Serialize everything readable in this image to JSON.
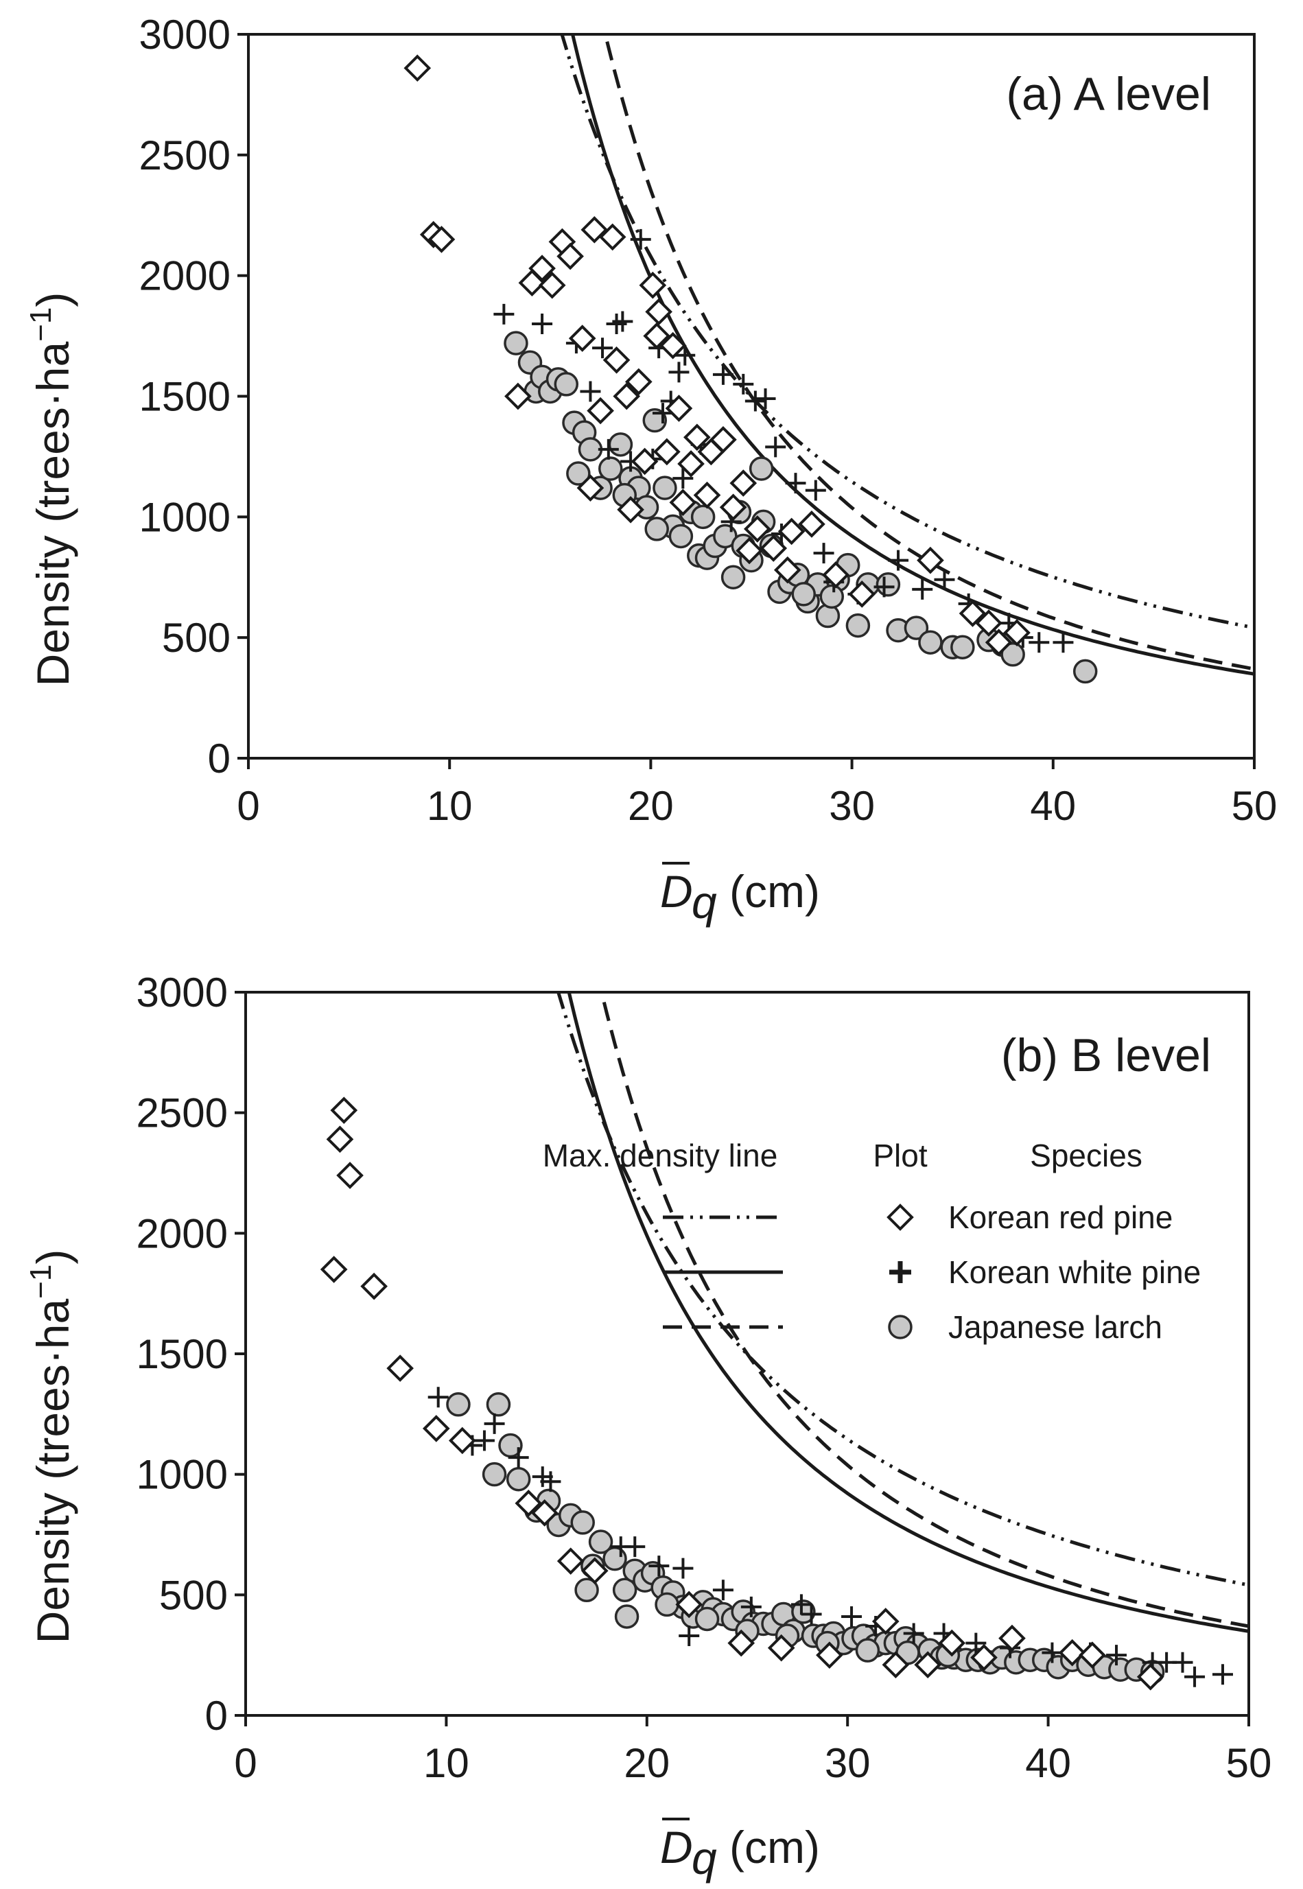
{
  "chart_data": [
    {
      "type": "scatter",
      "panel_label": "(a) A level",
      "xlabel": "(cm)",
      "xlabel_symbol": "D",
      "xlabel_subscript": "q",
      "ylabel": "Density (trees·ha",
      "ylabel_sup": "−1",
      "ylabel_close": ")",
      "xlim": [
        0,
        50
      ],
      "ylim": [
        0,
        3000
      ],
      "xticks": [
        "0",
        "10",
        "20",
        "30",
        "40",
        "50"
      ],
      "yticks": [
        "0",
        "500",
        "1000",
        "1500",
        "2000",
        "2500",
        "3000"
      ],
      "max_density_lines": [
        {
          "species": "Korean red pine",
          "style": "dash-dot-dot",
          "a": 170000,
          "b": -1.47
        },
        {
          "species": "Korean white pine",
          "style": "solid",
          "a": 590000,
          "b": -1.9
        },
        {
          "species": "Japanese larch",
          "style": "dashed",
          "a": 1000000,
          "b": -2.02
        }
      ],
      "series": [
        {
          "name": "Korean red pine",
          "marker": "diamond",
          "x": [
            8.4,
            9.2,
            9.6,
            13.4,
            14.1,
            14.6,
            15.1,
            15.6,
            16.0,
            16.6,
            17.2,
            17.0,
            18.1,
            18.3,
            18.8,
            19.4,
            19.7,
            20.1,
            20.3,
            20.4,
            20.8,
            21.1,
            21.4,
            22.0,
            22.3,
            23.0,
            23.6,
            24.1,
            24.6,
            25.3,
            26.1,
            27.0,
            28.0,
            29.2,
            30.5,
            33.9,
            36.0,
            36.8,
            37.3,
            38.2,
            17.5,
            19.0,
            21.6,
            22.8,
            24.9,
            26.8
          ],
          "y": [
            2860,
            2170,
            2150,
            1500,
            1970,
            2030,
            1960,
            2140,
            2080,
            1740,
            2190,
            1120,
            2160,
            1650,
            1500,
            1560,
            1230,
            1960,
            1750,
            1850,
            1270,
            1710,
            1450,
            1220,
            1330,
            1270,
            1320,
            1040,
            1140,
            950,
            870,
            940,
            970,
            760,
            680,
            820,
            600,
            560,
            480,
            520,
            1440,
            1030,
            1060,
            1090,
            860,
            780
          ]
        },
        {
          "name": "Korean white pine",
          "marker": "plus",
          "x": [
            12.7,
            14.6,
            16.3,
            17.0,
            17.6,
            18.3,
            18.6,
            19.5,
            20.1,
            20.4,
            20.6,
            21.0,
            21.4,
            21.7,
            22.5,
            23.6,
            24.6,
            25.2,
            25.7,
            26.2,
            27.2,
            28.2,
            29.1,
            30.3,
            31.6,
            33.5,
            34.6,
            37.8,
            38.5,
            39.3,
            40.5,
            17.9,
            19.0,
            21.6,
            24.0,
            26.5,
            28.6,
            32.3,
            35.8
          ],
          "y": [
            1840,
            1800,
            1720,
            1520,
            1700,
            1800,
            1810,
            2150,
            1240,
            1700,
            1430,
            1480,
            1600,
            1670,
            1300,
            1590,
            1550,
            1480,
            1490,
            1290,
            1140,
            1110,
            730,
            680,
            710,
            700,
            740,
            560,
            500,
            480,
            480,
            1280,
            1230,
            1160,
            980,
            930,
            850,
            820,
            640
          ]
        },
        {
          "name": "Japanese larch",
          "marker": "circle",
          "x": [
            13.3,
            14.0,
            14.3,
            14.6,
            15.0,
            15.4,
            15.8,
            16.2,
            16.7,
            17.0,
            17.5,
            18.0,
            18.5,
            19.0,
            19.4,
            19.8,
            20.2,
            20.7,
            21.1,
            21.5,
            22.0,
            22.4,
            22.8,
            23.2,
            23.7,
            24.1,
            24.6,
            25.0,
            25.5,
            26.0,
            26.4,
            26.9,
            27.3,
            27.8,
            28.3,
            28.8,
            29.3,
            29.8,
            30.3,
            30.8,
            31.8,
            32.3,
            33.2,
            33.9,
            35.0,
            35.5,
            36.8,
            37.5,
            38.0,
            41.6,
            20.3,
            22.6,
            24.4,
            25.6,
            27.6,
            29.0,
            16.4,
            18.7
          ],
          "y": [
            1720,
            1640,
            1520,
            1580,
            1520,
            1570,
            1550,
            1390,
            1350,
            1280,
            1120,
            1200,
            1300,
            1160,
            1120,
            1040,
            1400,
            1120,
            960,
            920,
            1020,
            840,
            830,
            880,
            920,
            750,
            880,
            820,
            1200,
            880,
            690,
            730,
            760,
            650,
            720,
            590,
            740,
            800,
            550,
            720,
            720,
            530,
            540,
            480,
            460,
            460,
            490,
            470,
            430,
            360,
            950,
            1000,
            1020,
            980,
            680,
            670,
            1180,
            1090
          ]
        }
      ]
    },
    {
      "type": "scatter",
      "panel_label": "(b) B level",
      "xlabel": "(cm)",
      "xlabel_symbol": "D",
      "xlabel_subscript": "q",
      "ylabel": "Density (trees·ha",
      "ylabel_sup": "−1",
      "ylabel_close": ")",
      "xlim": [
        0,
        50
      ],
      "ylim": [
        0,
        3000
      ],
      "xticks": [
        "0",
        "10",
        "20",
        "30",
        "40",
        "50"
      ],
      "yticks": [
        "0",
        "500",
        "1000",
        "1500",
        "2000",
        "2500",
        "3000"
      ],
      "max_density_lines": [
        {
          "species": "Korean red pine",
          "style": "dash-dot-dot",
          "a": 170000,
          "b": -1.47
        },
        {
          "species": "Korean white pine",
          "style": "solid",
          "a": 590000,
          "b": -1.9
        },
        {
          "species": "Japanese larch",
          "style": "dashed",
          "a": 1000000,
          "b": -2.02
        }
      ],
      "legend": {
        "header_line": "Max. density line",
        "header_plot": "Plot",
        "header_species": "Species",
        "entries": [
          "Korean red pine",
          "Korean white pine",
          "Japanese larch"
        ]
      },
      "series": [
        {
          "name": "Korean red pine",
          "marker": "diamond",
          "x": [
            4.4,
            4.7,
            4.9,
            5.2,
            6.4,
            7.7,
            9.5,
            10.8,
            14.1,
            14.9,
            16.2,
            17.4,
            22.1,
            24.7,
            26.7,
            29.1,
            31.9,
            32.4,
            34.0,
            35.2,
            36.8,
            38.2,
            41.2,
            42.2,
            45.1
          ],
          "y": [
            1850,
            2390,
            2510,
            2240,
            1780,
            1440,
            1190,
            1140,
            880,
            840,
            640,
            600,
            460,
            300,
            280,
            250,
            390,
            210,
            210,
            300,
            240,
            320,
            260,
            250,
            160
          ]
        },
        {
          "name": "Korean white pine",
          "marker": "plus",
          "x": [
            9.6,
            11.3,
            11.9,
            12.4,
            13.6,
            14.8,
            15.2,
            18.7,
            19.4,
            20.6,
            21.8,
            22.1,
            23.8,
            25.2,
            27.7,
            28.2,
            30.2,
            31.4,
            33.3,
            34.8,
            36.4,
            38.1,
            40.2,
            42.1,
            43.4,
            45.2,
            45.9,
            46.7,
            47.3,
            48.7
          ],
          "y": [
            1320,
            1120,
            1140,
            1210,
            1070,
            990,
            970,
            700,
            700,
            620,
            610,
            330,
            520,
            450,
            460,
            420,
            410,
            370,
            340,
            340,
            300,
            280,
            260,
            260,
            250,
            220,
            220,
            220,
            160,
            170
          ]
        },
        {
          "name": "Japanese larch",
          "marker": "circle",
          "x": [
            10.6,
            12.4,
            12.6,
            13.2,
            13.6,
            14.5,
            15.1,
            15.6,
            16.2,
            16.8,
            17.3,
            17.7,
            18.4,
            18.9,
            19.4,
            19.9,
            20.3,
            20.8,
            21.3,
            21.8,
            22.3,
            22.8,
            23.3,
            23.8,
            24.3,
            24.8,
            25.3,
            25.8,
            26.3,
            26.8,
            27.3,
            27.8,
            28.3,
            28.8,
            29.3,
            29.8,
            30.3,
            30.8,
            31.4,
            31.9,
            32.4,
            32.9,
            33.5,
            34.1,
            34.7,
            35.3,
            35.9,
            36.5,
            37.1,
            37.7,
            38.4,
            39.1,
            39.8,
            40.5,
            41.2,
            42.0,
            42.8,
            43.6,
            44.4,
            45.2,
            17.0,
            19.0,
            21.0,
            23.0,
            25.0,
            27.0,
            29.0,
            31.0,
            33.0,
            35.0
          ],
          "y": [
            1290,
            1000,
            1290,
            1120,
            980,
            850,
            890,
            790,
            830,
            800,
            620,
            720,
            650,
            520,
            600,
            560,
            590,
            530,
            510,
            450,
            410,
            470,
            440,
            420,
            400,
            430,
            380,
            380,
            380,
            420,
            350,
            430,
            330,
            330,
            340,
            300,
            320,
            330,
            290,
            300,
            300,
            320,
            290,
            270,
            240,
            240,
            230,
            230,
            220,
            240,
            220,
            230,
            230,
            200,
            230,
            210,
            200,
            190,
            190,
            180,
            520,
            410,
            460,
            400,
            350,
            330,
            300,
            270,
            260,
            250
          ]
        }
      ]
    }
  ]
}
